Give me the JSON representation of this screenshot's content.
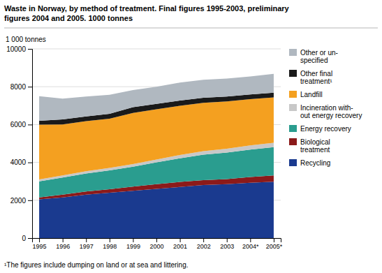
{
  "chart_data": {
    "type": "area",
    "stacked": true,
    "title": "Waste in Norway, by method of treatment. Final figures 1995-2003, preliminary\nfigures 2004 and 2005. 1000 tonnes",
    "ylabel": "1 000 tonnes",
    "annotations": [
      "¹The figures include dumping on land or at sea and littering."
    ],
    "categories": [
      "1995",
      "1996",
      "1997",
      "1998",
      "1999",
      "2000",
      "2001",
      "2002",
      "2003",
      "2004*",
      "2005*"
    ],
    "series": [
      {
        "name": "Recycling",
        "color": "#1a3a8f",
        "values": [
          2050,
          2150,
          2300,
          2400,
          2500,
          2600,
          2700,
          2800,
          2850,
          2920,
          2980
        ]
      },
      {
        "name": "Biological\ntreatment",
        "color": "#8b1a1a",
        "values": [
          100,
          150,
          160,
          180,
          220,
          250,
          270,
          260,
          270,
          310,
          330
        ]
      },
      {
        "name": "Energy recovery",
        "color": "#2a9d8f",
        "values": [
          850,
          900,
          950,
          1000,
          1050,
          1150,
          1250,
          1350,
          1400,
          1450,
          1500
        ]
      },
      {
        "name": "Incineration with-\nout energy recovery",
        "color": "#c8c8c8",
        "values": [
          100,
          110,
          120,
          130,
          140,
          155,
          170,
          185,
          200,
          215,
          230
        ]
      },
      {
        "name": "Landfill",
        "color": "#f4a020",
        "values": [
          2900,
          2700,
          2650,
          2600,
          2700,
          2650,
          2600,
          2550,
          2500,
          2450,
          2400
        ]
      },
      {
        "name": "Other final\ntreatment¹",
        "color": "#1a1a1a",
        "values": [
          200,
          260,
          250,
          260,
          310,
          290,
          280,
          270,
          260,
          250,
          240
        ]
      },
      {
        "name": "Other or un-\nspecified",
        "color": "#b0b8c0",
        "values": [
          1300,
          1100,
          1050,
          1000,
          900,
          900,
          950,
          950,
          950,
          950,
          1000
        ]
      }
    ],
    "ylim": [
      0,
      10000
    ],
    "yticks": [
      0,
      2000,
      4000,
      6000,
      8000,
      10000
    ],
    "grid": true,
    "legend": "right"
  }
}
